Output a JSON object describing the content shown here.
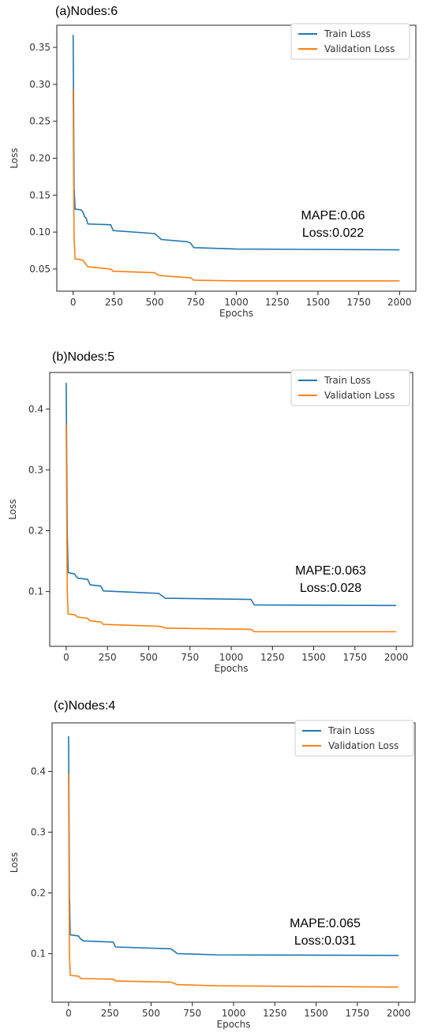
{
  "panels_meta": {
    "train_color": "#1f77b4",
    "val_color": "#ff7f0e"
  },
  "chart_data": [
    {
      "type": "line",
      "title": "(a)Nodes:6",
      "xlabel": "Epochs",
      "ylabel": "Loss",
      "xlim": [
        -100,
        2100
      ],
      "ylim": [
        0.02,
        0.38
      ],
      "xticks": [
        0,
        250,
        500,
        750,
        1000,
        1250,
        1500,
        1750,
        2000
      ],
      "yticks": [
        0.05,
        0.1,
        0.15,
        0.2,
        0.25,
        0.3,
        0.35
      ],
      "ytick_labels": [
        "0.05",
        "0.10",
        "0.15",
        "0.20",
        "0.25",
        "0.30",
        "0.35"
      ],
      "legend_position": "top-right",
      "annotation": [
        "MAPE:0.06",
        "Loss:0.022"
      ],
      "series": [
        {
          "name": "Train Loss",
          "color": "#1f77b4",
          "points": [
            [
              0,
              0.367
            ],
            [
              6,
              0.16
            ],
            [
              12,
              0.131
            ],
            [
              50,
              0.13
            ],
            [
              60,
              0.127
            ],
            [
              70,
              0.121
            ],
            [
              80,
              0.119
            ],
            [
              90,
              0.111
            ],
            [
              230,
              0.11
            ],
            [
              245,
              0.102
            ],
            [
              500,
              0.098
            ],
            [
              520,
              0.094
            ],
            [
              540,
              0.09
            ],
            [
              700,
              0.087
            ],
            [
              720,
              0.085
            ],
            [
              740,
              0.079
            ],
            [
              1000,
              0.077
            ],
            [
              2000,
              0.076
            ]
          ]
        },
        {
          "name": "Validation Loss",
          "color": "#ff7f0e",
          "points": [
            [
              0,
              0.293
            ],
            [
              6,
              0.09
            ],
            [
              12,
              0.064
            ],
            [
              60,
              0.062
            ],
            [
              70,
              0.059
            ],
            [
              80,
              0.056
            ],
            [
              90,
              0.053
            ],
            [
              230,
              0.05
            ],
            [
              245,
              0.047
            ],
            [
              500,
              0.045
            ],
            [
              520,
              0.042
            ],
            [
              540,
              0.041
            ],
            [
              720,
              0.038
            ],
            [
              740,
              0.035
            ],
            [
              1000,
              0.034
            ],
            [
              2000,
              0.034
            ]
          ]
        }
      ]
    },
    {
      "type": "line",
      "title": "(b)Nodes:5",
      "xlabel": "Epochs",
      "ylabel": "Loss",
      "xlim": [
        -100,
        2100
      ],
      "ylim": [
        0.01,
        0.46
      ],
      "xticks": [
        0,
        250,
        500,
        750,
        1000,
        1250,
        1500,
        1750,
        2000
      ],
      "yticks": [
        0.1,
        0.2,
        0.3,
        0.4
      ],
      "ytick_labels": [
        "0.1",
        "0.2",
        "0.3",
        "0.4"
      ],
      "legend_position": "top-right",
      "annotation": [
        "MAPE:0.063",
        "Loss:0.028"
      ],
      "series": [
        {
          "name": "Train Loss",
          "color": "#1f77b4",
          "points": [
            [
              0,
              0.443
            ],
            [
              6,
              0.2
            ],
            [
              12,
              0.131
            ],
            [
              50,
              0.129
            ],
            [
              60,
              0.125
            ],
            [
              70,
              0.122
            ],
            [
              130,
              0.12
            ],
            [
              145,
              0.111
            ],
            [
              210,
              0.109
            ],
            [
              225,
              0.101
            ],
            [
              560,
              0.097
            ],
            [
              580,
              0.093
            ],
            [
              600,
              0.089
            ],
            [
              1120,
              0.087
            ],
            [
              1140,
              0.078
            ],
            [
              2000,
              0.077
            ]
          ]
        },
        {
          "name": "Validation Loss",
          "color": "#ff7f0e",
          "points": [
            [
              0,
              0.375
            ],
            [
              6,
              0.1
            ],
            [
              12,
              0.063
            ],
            [
              50,
              0.062
            ],
            [
              60,
              0.06
            ],
            [
              70,
              0.058
            ],
            [
              130,
              0.056
            ],
            [
              145,
              0.052
            ],
            [
              210,
              0.05
            ],
            [
              225,
              0.046
            ],
            [
              560,
              0.043
            ],
            [
              580,
              0.042
            ],
            [
              600,
              0.04
            ],
            [
              1120,
              0.038
            ],
            [
              1140,
              0.034
            ],
            [
              2000,
              0.034
            ]
          ]
        }
      ]
    },
    {
      "type": "line",
      "title": "(c)Nodes:4",
      "xlabel": "Epochs",
      "ylabel": "Loss",
      "xlim": [
        -100,
        2100
      ],
      "ylim": [
        0.02,
        0.48
      ],
      "xticks": [
        0,
        250,
        500,
        750,
        1000,
        1250,
        1500,
        1750,
        2000
      ],
      "yticks": [
        0.1,
        0.2,
        0.3,
        0.4
      ],
      "ytick_labels": [
        "0.1",
        "0.2",
        "0.3",
        "0.4"
      ],
      "legend_position": "top-right",
      "annotation": [
        "MAPE:0.065",
        "Loss:0.031"
      ],
      "series": [
        {
          "name": "Train Loss",
          "color": "#1f77b4",
          "points": [
            [
              0,
              0.458
            ],
            [
              5,
              0.2
            ],
            [
              10,
              0.131
            ],
            [
              60,
              0.129
            ],
            [
              70,
              0.125
            ],
            [
              90,
              0.121
            ],
            [
              270,
              0.119
            ],
            [
              285,
              0.111
            ],
            [
              620,
              0.108
            ],
            [
              640,
              0.104
            ],
            [
              660,
              0.1
            ],
            [
              900,
              0.098
            ],
            [
              2000,
              0.097
            ]
          ]
        },
        {
          "name": "Validation Loss",
          "color": "#ff7f0e",
          "points": [
            [
              0,
              0.397
            ],
            [
              5,
              0.1
            ],
            [
              10,
              0.064
            ],
            [
              60,
              0.063
            ],
            [
              75,
              0.059
            ],
            [
              270,
              0.058
            ],
            [
              285,
              0.055
            ],
            [
              620,
              0.053
            ],
            [
              640,
              0.051
            ],
            [
              660,
              0.049
            ],
            [
              900,
              0.047
            ],
            [
              2000,
              0.045
            ]
          ]
        }
      ]
    }
  ]
}
